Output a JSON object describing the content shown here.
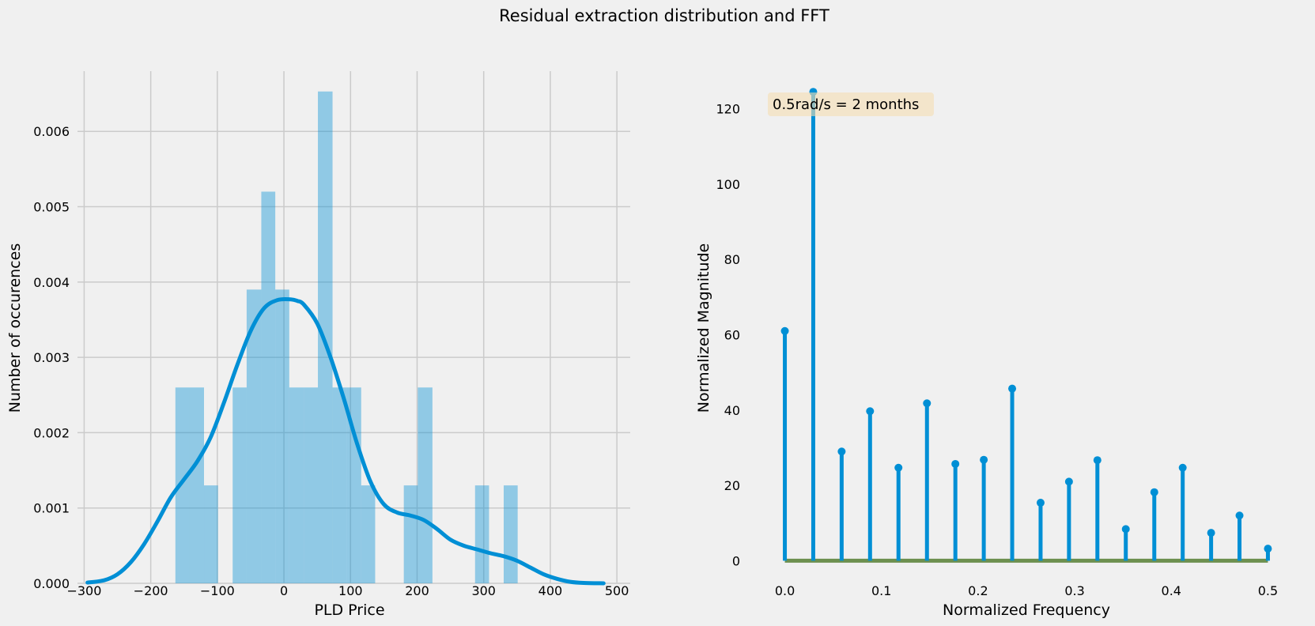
{
  "figure": {
    "suptitle": "Residual extraction distribution and FFT",
    "colors": {
      "background": "#f0f0f0",
      "grid": "#cbcbcb",
      "blue": "#008fd5",
      "hist_fill": "#008fd5",
      "baseline": "#6d904f",
      "annotation_box": "#f5deb3",
      "text": "#000000"
    }
  },
  "chart_data": [
    {
      "type": "bar",
      "subtype": "histogram-with-kde",
      "xlabel": "PLD Price",
      "ylabel": "Number of occurences",
      "xlim": [
        -310,
        520
      ],
      "ylim": [
        0,
        0.0068
      ],
      "xticks": [
        -300,
        -200,
        -100,
        0,
        100,
        200,
        300,
        400,
        500
      ],
      "xtick_labels": [
        "−300",
        "−200",
        "−100",
        "0",
        "100",
        "200",
        "300",
        "400",
        "500"
      ],
      "yticks": [
        0,
        0.001,
        0.002,
        0.003,
        0.004,
        0.005,
        0.006
      ],
      "ytick_labels": [
        "0.000",
        "0.001",
        "0.002",
        "0.003",
        "0.004",
        "0.005",
        "0.006"
      ],
      "grid": true,
      "bins": [
        {
          "x0": -163,
          "x1": -142,
          "value": 0.0026
        },
        {
          "x0": -142,
          "x1": -120,
          "value": 0.0026
        },
        {
          "x0": -120,
          "x1": -99,
          "value": 0.0013
        },
        {
          "x0": -77,
          "x1": -56,
          "value": 0.0026
        },
        {
          "x0": -56,
          "x1": -34,
          "value": 0.0039
        },
        {
          "x0": -34,
          "x1": -13,
          "value": 0.0052
        },
        {
          "x0": -13,
          "x1": 8,
          "value": 0.0039
        },
        {
          "x0": 8,
          "x1": 30,
          "value": 0.0026
        },
        {
          "x0": 30,
          "x1": 51,
          "value": 0.0026
        },
        {
          "x0": 51,
          "x1": 73,
          "value": 0.00653
        },
        {
          "x0": 73,
          "x1": 94,
          "value": 0.0026
        },
        {
          "x0": 94,
          "x1": 116,
          "value": 0.0026
        },
        {
          "x0": 116,
          "x1": 137,
          "value": 0.0013
        },
        {
          "x0": 180,
          "x1": 201,
          "value": 0.0013
        },
        {
          "x0": 201,
          "x1": 223,
          "value": 0.0026
        },
        {
          "x0": 287,
          "x1": 308,
          "value": 0.0013
        },
        {
          "x0": 330,
          "x1": 351,
          "value": 0.0013
        }
      ],
      "kde": {
        "x": [
          -295,
          -270,
          -250,
          -230,
          -210,
          -190,
          -170,
          -150,
          -130,
          -110,
          -90,
          -70,
          -50,
          -30,
          -10,
          10,
          20,
          30,
          50,
          70,
          90,
          110,
          130,
          150,
          170,
          190,
          210,
          230,
          250,
          270,
          290,
          310,
          330,
          350,
          370,
          390,
          410,
          430,
          450,
          480
        ],
        "y": [
          1e-05,
          4e-05,
          0.00012,
          0.00028,
          0.00052,
          0.00082,
          0.00114,
          0.00138,
          0.00162,
          0.00194,
          0.0024,
          0.0029,
          0.00335,
          0.00365,
          0.00376,
          0.00377,
          0.00375,
          0.0037,
          0.00345,
          0.003,
          0.00245,
          0.00185,
          0.00135,
          0.00105,
          0.00094,
          0.0009,
          0.00084,
          0.00072,
          0.00058,
          0.0005,
          0.00045,
          0.0004,
          0.00036,
          0.0003,
          0.00021,
          0.00012,
          6e-05,
          2e-05,
          5e-06,
          0.0
        ]
      }
    },
    {
      "type": "scatter",
      "subtype": "stem",
      "xlabel": "Normalized Frequency",
      "ylabel": "Normalized Magnitude",
      "xlim": [
        -0.025,
        0.525
      ],
      "ylim": [
        -6,
        130
      ],
      "xticks": [
        0.0,
        0.1,
        0.2,
        0.3,
        0.4,
        0.5
      ],
      "xtick_labels": [
        "0.0",
        "0.1",
        "0.2",
        "0.3",
        "0.4",
        "0.5"
      ],
      "yticks": [
        0,
        20,
        40,
        60,
        80,
        100,
        120
      ],
      "ytick_labels": [
        "0",
        "20",
        "40",
        "60",
        "80",
        "100",
        "120"
      ],
      "grid": false,
      "annotation": "0.5rad/s = 2 months",
      "x": [
        0.0,
        0.0294,
        0.0588,
        0.0882,
        0.1176,
        0.1471,
        0.1765,
        0.2059,
        0.2353,
        0.2647,
        0.2941,
        0.3235,
        0.3529,
        0.3824,
        0.4118,
        0.4412,
        0.4706,
        0.5
      ],
      "y": [
        61,
        124.5,
        29,
        39.7,
        24.7,
        41.8,
        25.7,
        26.8,
        45.7,
        15.4,
        21,
        26.7,
        8.4,
        18.2,
        24.7,
        7.4,
        12,
        3.2
      ]
    }
  ]
}
